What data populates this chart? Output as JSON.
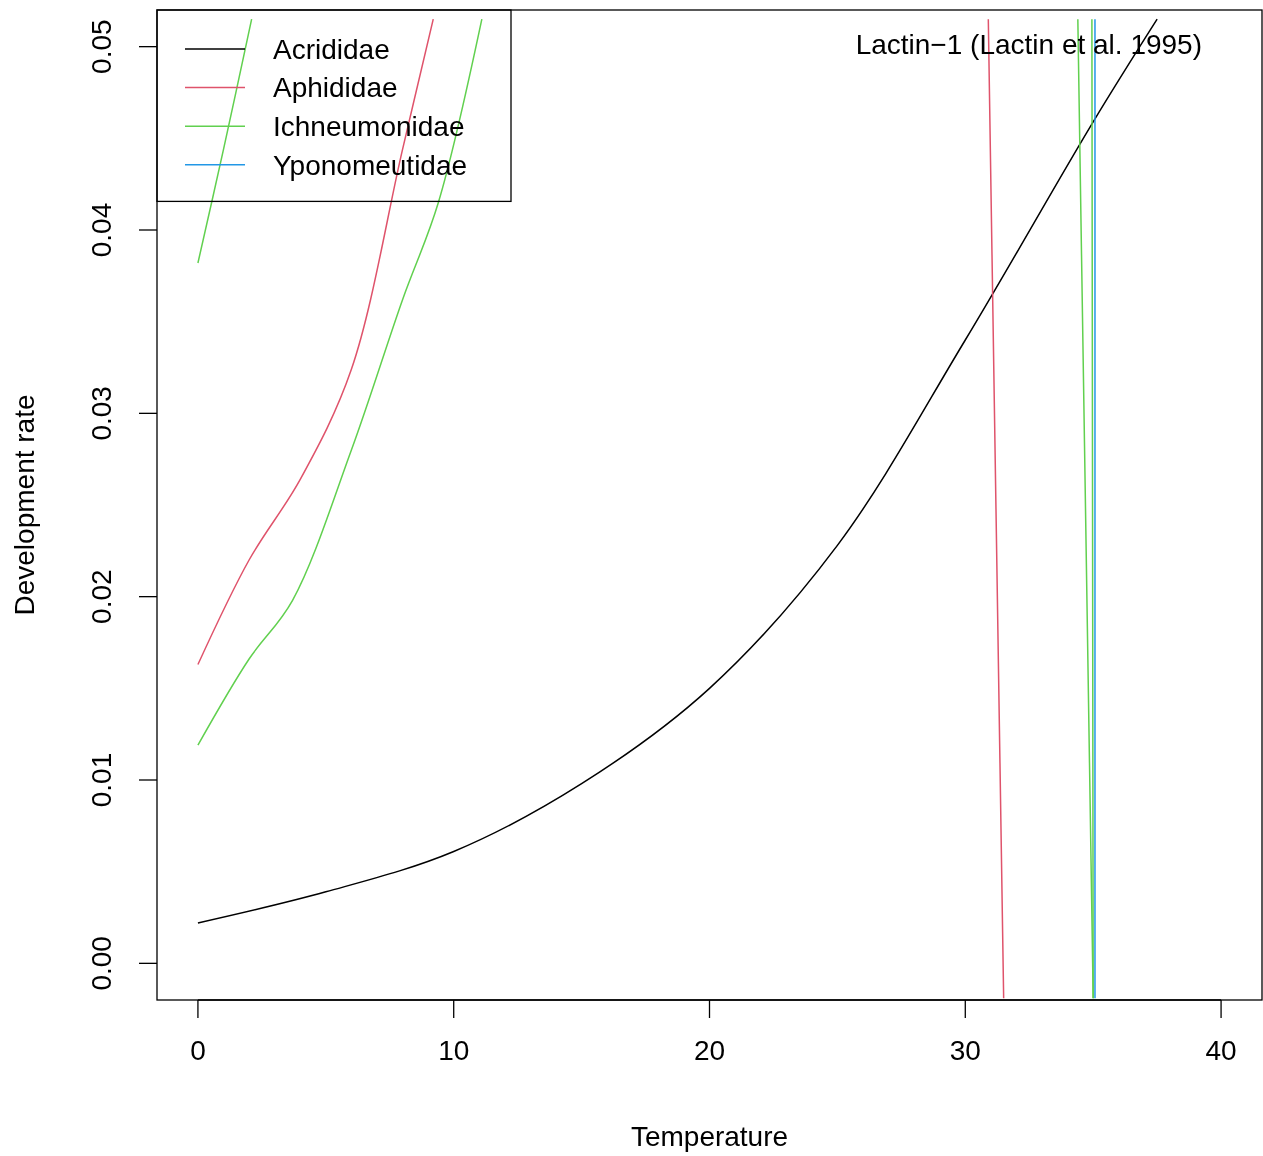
{
  "chart_data": {
    "type": "line",
    "xlabel": "Temperature",
    "ylabel": "Development rate",
    "annotations": [
      "Lactin−1 (Lactin et al. 1995)"
    ],
    "xlim": [
      -1.6,
      41.6
    ],
    "ylim": [
      -0.002,
      0.052
    ],
    "xticks": [
      0,
      10,
      20,
      30,
      40
    ],
    "yticks": [
      {
        "value": 0,
        "label": "0.00"
      },
      {
        "value": 0.01,
        "label": "0.01"
      },
      {
        "value": 0.02,
        "label": "0.02"
      },
      {
        "value": 0.03,
        "label": "0.03"
      },
      {
        "value": 0.04,
        "label": "0.04"
      },
      {
        "value": 0.05,
        "label": "0.05"
      }
    ],
    "grid": false,
    "legend": "top left",
    "marker": "none",
    "line_style": "solid",
    "series": [
      {
        "name": "Acrididae",
        "color": "#000000",
        "x": [
          0,
          5,
          10,
          15,
          20,
          25,
          30,
          35,
          37.5
        ],
        "values": [
          0.0022,
          0.0039,
          0.0061,
          0.0098,
          0.015,
          0.0228,
          0.034,
          0.0459,
          0.0515
        ]
      },
      {
        "name": "Aphididae",
        "color": "#df536b",
        "x": [
          0,
          2,
          4,
          6,
          8,
          9.2,
          20,
          30.9,
          31.5
        ],
        "values": [
          0.0163,
          0.022,
          0.0264,
          0.0324,
          0.0444,
          0.0515,
          null,
          0.0515,
          -0.0019
        ]
      },
      {
        "name": "Ichneumonidae",
        "color": "#61d04f",
        "x": [
          0,
          2,
          3.7,
          6,
          8,
          9.4,
          11.1,
          20,
          34.4,
          35.0
        ],
        "values": [
          0.0119,
          0.0166,
          0.0198,
          0.028,
          0.0362,
          0.0415,
          0.0515,
          null,
          0.0515,
          -0.0019
        ]
      },
      {
        "color": "#61d04f",
        "x": [
          0,
          1,
          2.1,
          20,
          34.95,
          35.0
        ],
        "values": [
          0.0382,
          0.0444,
          0.0515,
          null,
          0.0515,
          -0.0019
        ]
      },
      {
        "name": "Yponomeutidae",
        "color": "#2297e6",
        "x": [
          35.07,
          35.07
        ],
        "values": [
          0.0515,
          -0.0019
        ]
      }
    ]
  }
}
